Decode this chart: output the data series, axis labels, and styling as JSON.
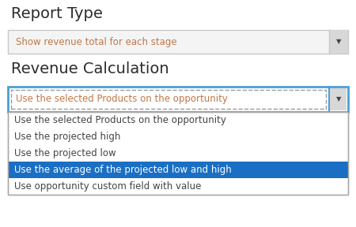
{
  "title1": "Report Type",
  "title2": "Revenue Calculation",
  "dropdown1_text": "Show revenue total for each stage",
  "dropdown2_text": "Use the selected Products on the opportunity",
  "dropdown_items": [
    "Use the selected Products on the opportunity",
    "Use the projected high",
    "Use the projected low",
    "Use the average of the projected low and high",
    "Use opportunity custom field with value"
  ],
  "selected_item_index": 3,
  "bg_color": "#ffffff",
  "dropdown1_border": "#c8c8c8",
  "dropdown1_bg": "#f4f4f4",
  "dropdown2_border": "#4a9fd4",
  "dropdown2_bg": "#ffffff",
  "selected_bg": "#1a6fc4",
  "selected_text_color": "#ffffff",
  "normal_text_color": "#444444",
  "title_color": "#2c2c2c",
  "dropdown_text_color": "#c07848",
  "list_bg": "#ffffff",
  "list_border": "#aaaaaa",
  "arrow_area_bg": "#d8d8d8",
  "arrow_color": "#444444",
  "dashed_border_color": "#999999"
}
